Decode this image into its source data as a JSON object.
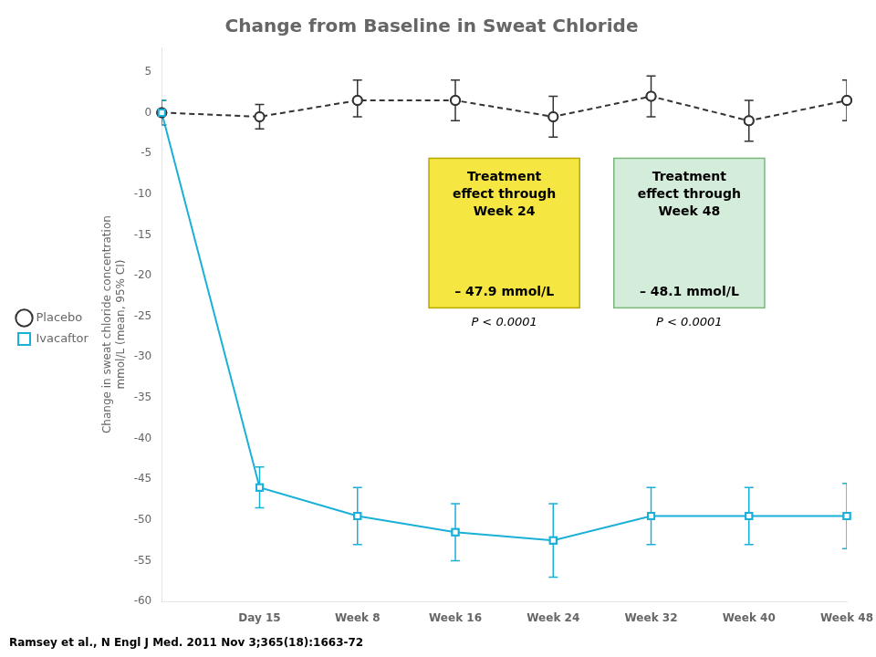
{
  "chart_data": {
    "type": "line",
    "title": "Change from Baseline in Sweat Chloride",
    "ylabel": [
      "Change in sweat chloride concentration",
      "mmol/L (mean, 95% CI)"
    ],
    "categories": [
      null,
      "Day 15",
      "Week 8",
      "Week 16",
      "Week 24",
      "Week 32",
      "Week 40",
      "Week 48"
    ],
    "series": [
      {
        "name": "Placebo",
        "color": "#333333",
        "marker": "circle",
        "line_style": "dashed",
        "values": [
          0.0,
          -0.5,
          1.5,
          1.5,
          -0.5,
          2.0,
          -1.0,
          1.5
        ],
        "yerr_low": [
          1.5,
          1.5,
          2.0,
          2.5,
          2.5,
          2.5,
          2.5,
          2.5
        ],
        "yerr_high": [
          1.5,
          1.5,
          2.5,
          2.5,
          2.5,
          2.5,
          2.5,
          2.5
        ]
      },
      {
        "name": "Ivacaftor",
        "color": "#1ab0d8",
        "marker": "square",
        "line_style": "solid",
        "values": [
          0.0,
          -46.0,
          -49.5,
          -51.5,
          -52.5,
          -49.5,
          -49.5,
          -49.5
        ],
        "yerr_low": [
          1.5,
          2.5,
          3.5,
          3.5,
          4.5,
          3.5,
          3.5,
          4.0
        ],
        "yerr_high": [
          1.5,
          2.5,
          3.5,
          3.5,
          4.5,
          3.5,
          3.5,
          4.0
        ]
      }
    ],
    "ylim": [
      -60,
      8
    ],
    "yticks": [
      5,
      0,
      -5,
      -10,
      -15,
      -20,
      -25,
      -30,
      -35,
      -40,
      -45,
      -50,
      -55,
      -60
    ],
    "grid": false,
    "legend": "left",
    "annotations": [
      {
        "title": "Treatment\neffect through\nWeek 24",
        "value": "– 47.9 mmol/L",
        "p": "P < 0.0001",
        "color": "#f5e642",
        "border_color": "#b8a800"
      },
      {
        "title": "Treatment\neffect through\nWeek 48",
        "value": "– 48.1 mmol/L",
        "p": "P < 0.0001",
        "color": "#d4edda",
        "border_color": "#7ab87a"
      }
    ],
    "caption": "Ramsey et al., N Engl J Med. 2011 Nov 3;365(18):1663-72"
  }
}
